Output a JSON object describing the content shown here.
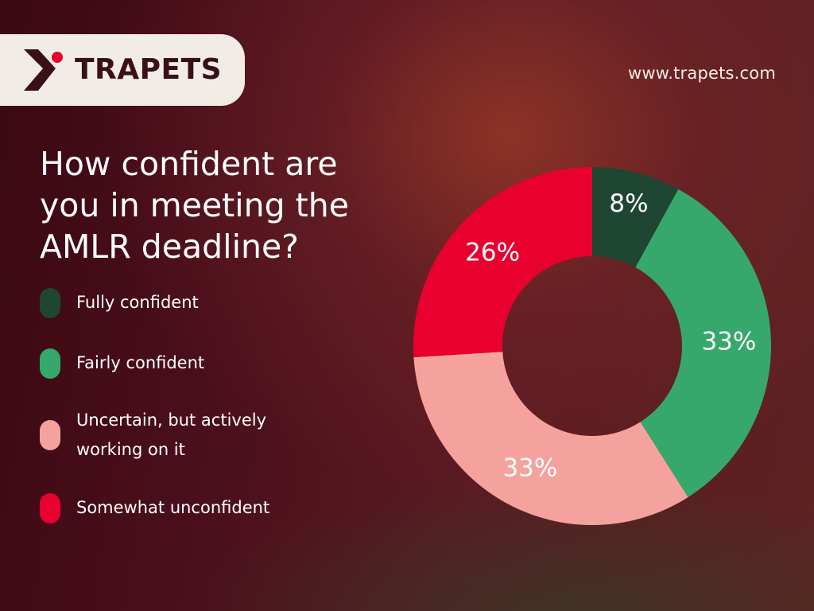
{
  "brand": {
    "name": "TRAPETS",
    "logo_icon": "trapets-logo-icon",
    "website": "www.trapets.com"
  },
  "title": "How confident are you in meeting the AMLR deadline?",
  "colors": {
    "fully_confident": "#1e4633",
    "fairly_confident": "#37a86b",
    "uncertain": "#f5a29e",
    "somewhat_unconfident": "#e8002f",
    "brand_dark": "#3a1018",
    "logo_card": "#f1ede6"
  },
  "legend": [
    {
      "label": "Fully confident",
      "color": "#1e4633"
    },
    {
      "label": "Fairly confident",
      "color": "#37a86b"
    },
    {
      "label": "Uncertain, but actively working on it",
      "color": "#f5a29e"
    },
    {
      "label": "Somewhat unconfident",
      "color": "#e8002f"
    }
  ],
  "chart_data": {
    "type": "pie",
    "variant": "donut",
    "title": "How confident are you in meeting the AMLR deadline?",
    "categories": [
      "Fully confident",
      "Fairly confident",
      "Uncertain, but actively working on it",
      "Somewhat unconfident"
    ],
    "values": [
      8,
      33,
      33,
      26
    ],
    "value_labels": [
      "8%",
      "33%",
      "33%",
      "26%"
    ],
    "colors": [
      "#1e4633",
      "#37a86b",
      "#f5a29e",
      "#e8002f"
    ],
    "unit": "%",
    "start": "top",
    "direction": "clockwise",
    "legend_position": "left"
  }
}
